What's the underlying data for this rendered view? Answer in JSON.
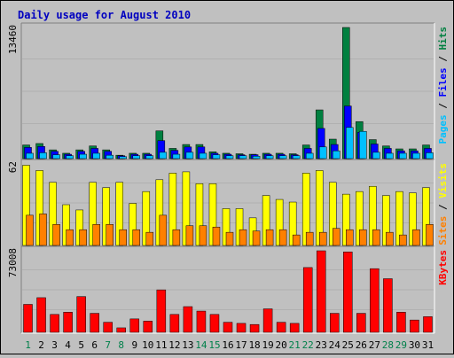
{
  "title": "Daily usage for August 2010",
  "colors": {
    "background": "#c0c0c0",
    "plot_background": "#c0c0c0",
    "title": "#0000c0",
    "hits": "#008040",
    "files": "#0000ff",
    "pages": "#00c0ff",
    "visits": "#ffff00",
    "sites": "#ff8000",
    "kbytes": "#ff0000",
    "weekend_day": "#00804a",
    "weekday": "#000000"
  },
  "chart_data": [
    {
      "type": "bar",
      "panel": "hits-files-pages",
      "y_axis_label": "13460",
      "ylim": [
        0,
        13460
      ],
      "categories": [
        "1",
        "2",
        "3",
        "4",
        "5",
        "6",
        "7",
        "8",
        "9",
        "10",
        "11",
        "12",
        "13",
        "14",
        "15",
        "16",
        "17",
        "18",
        "19",
        "20",
        "21",
        "22",
        "23",
        "24",
        "25",
        "26",
        "27",
        "28",
        "29",
        "30",
        "31"
      ],
      "weekend_days": [
        1,
        7,
        8,
        14,
        15,
        21,
        22,
        28,
        29
      ],
      "legend": [
        {
          "label": "Hits",
          "color": "#008040"
        },
        {
          "label": "Files",
          "color": "#0000ff"
        },
        {
          "label": "Pages",
          "color": "#00c0ff"
        }
      ],
      "series": [
        {
          "name": "Hits",
          "values": [
            1400,
            1550,
            900,
            550,
            900,
            1300,
            900,
            350,
            550,
            550,
            2850,
            1050,
            1450,
            1450,
            700,
            550,
            500,
            450,
            550,
            550,
            500,
            1400,
            5000,
            2000,
            13460,
            3800,
            1950,
            1300,
            1000,
            1000,
            1400
          ]
        },
        {
          "name": "Files",
          "values": [
            1150,
            1250,
            750,
            450,
            750,
            1050,
            750,
            300,
            450,
            450,
            1850,
            850,
            1200,
            1200,
            550,
            450,
            400,
            400,
            450,
            450,
            400,
            1050,
            3100,
            1450,
            5400,
            2700,
            1500,
            1050,
            800,
            800,
            1050
          ]
        },
        {
          "name": "Pages",
          "values": [
            550,
            600,
            400,
            300,
            450,
            550,
            350,
            200,
            300,
            300,
            650,
            450,
            650,
            550,
            400,
            300,
            300,
            250,
            300,
            300,
            300,
            550,
            1200,
            800,
            3200,
            2800,
            650,
            550,
            550,
            550,
            600
          ]
        }
      ]
    },
    {
      "type": "bar",
      "panel": "visits-sites",
      "y_axis_label": "62",
      "ylim": [
        0,
        62
      ],
      "categories": [
        "1",
        "2",
        "3",
        "4",
        "5",
        "6",
        "7",
        "8",
        "9",
        "10",
        "11",
        "12",
        "13",
        "14",
        "15",
        "16",
        "17",
        "18",
        "19",
        "20",
        "21",
        "22",
        "23",
        "24",
        "25",
        "26",
        "27",
        "28",
        "29",
        "30",
        "31"
      ],
      "legend": [
        {
          "label": "Visits",
          "color": "#ffff00"
        },
        {
          "label": "Sites",
          "color": "#ff8000"
        }
      ],
      "series": [
        {
          "name": "Visits",
          "values": [
            61,
            57,
            48,
            31,
            27,
            48,
            44,
            48,
            32,
            41,
            50,
            55,
            56,
            47,
            47,
            28,
            28,
            21,
            38,
            35,
            33,
            55,
            57,
            48,
            39,
            41,
            45,
            38,
            41,
            40,
            44
          ]
        },
        {
          "name": "Sites",
          "values": [
            23,
            24,
            16,
            12,
            12,
            16,
            16,
            12,
            12,
            10,
            23,
            12,
            15,
            15,
            14,
            10,
            12,
            11,
            12,
            12,
            8,
            10,
            10,
            13,
            12,
            12,
            12,
            10,
            8,
            12,
            16
          ]
        }
      ]
    },
    {
      "type": "bar",
      "panel": "kbytes",
      "y_axis_label": "73008",
      "ylim": [
        0,
        73008
      ],
      "categories": [
        "1",
        "2",
        "3",
        "4",
        "5",
        "6",
        "7",
        "8",
        "9",
        "10",
        "11",
        "12",
        "13",
        "14",
        "15",
        "16",
        "17",
        "18",
        "19",
        "20",
        "21",
        "22",
        "23",
        "24",
        "25",
        "26",
        "27",
        "28",
        "29",
        "30",
        "31"
      ],
      "legend": [
        {
          "label": "KBytes",
          "color": "#ff0000"
        }
      ],
      "series": [
        {
          "name": "KBytes",
          "values": [
            25000,
            31000,
            16000,
            18000,
            32000,
            17000,
            9000,
            4000,
            12000,
            10000,
            38000,
            16000,
            23000,
            19000,
            16000,
            9000,
            8000,
            7000,
            21000,
            9000,
            8000,
            58000,
            73000,
            17000,
            72000,
            17000,
            57000,
            48000,
            18000,
            11000,
            14000
          ]
        }
      ]
    }
  ]
}
